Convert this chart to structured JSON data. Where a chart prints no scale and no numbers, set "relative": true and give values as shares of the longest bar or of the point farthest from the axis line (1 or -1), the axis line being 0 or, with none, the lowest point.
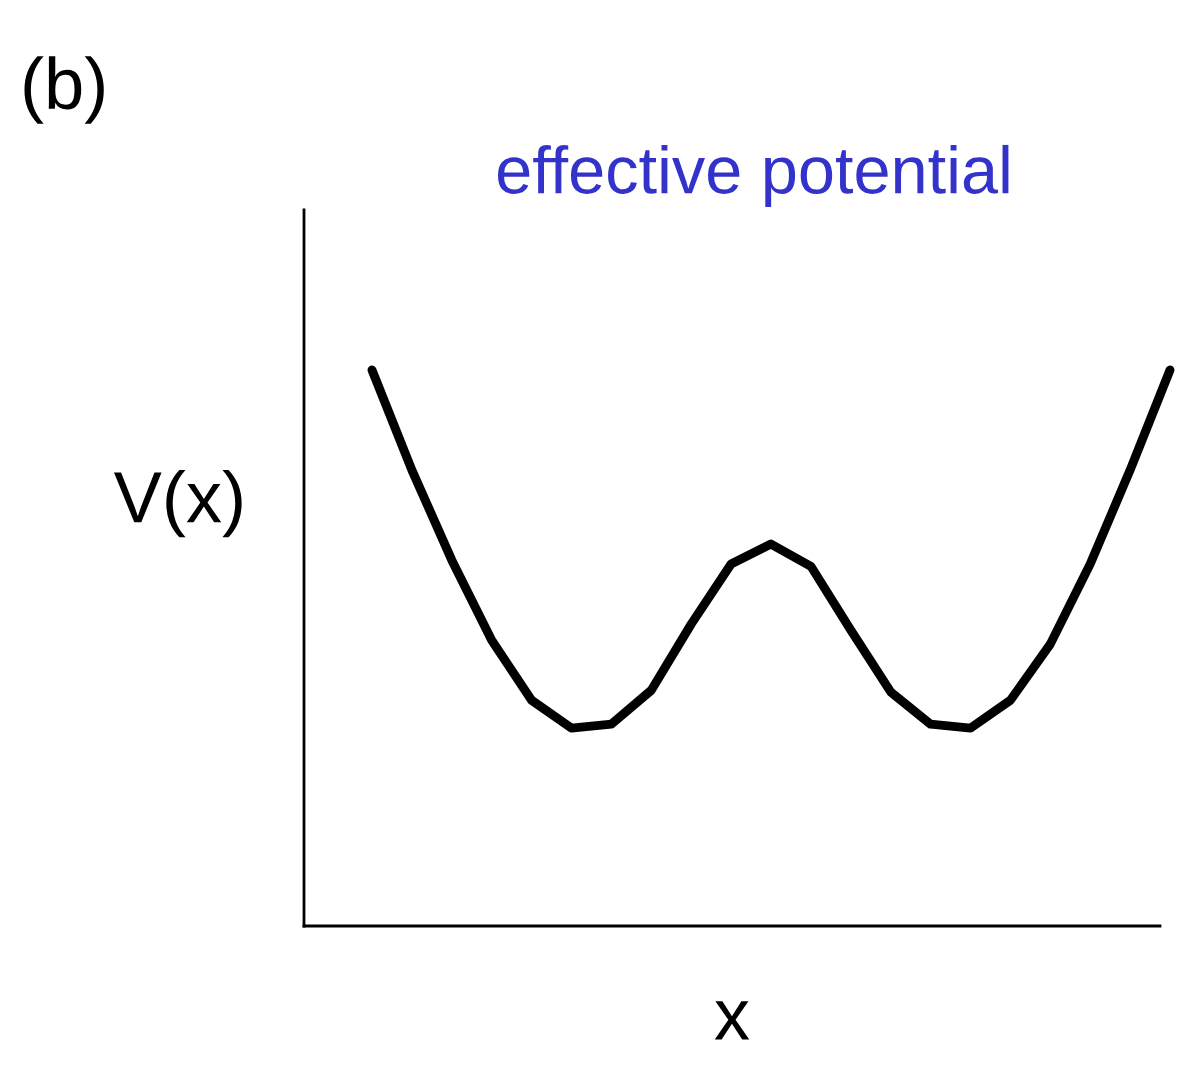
{
  "chart_data": {
    "type": "line",
    "title": "effective potential",
    "xlabel": "x",
    "ylabel": "V(x)",
    "annotations": [
      "(b)"
    ],
    "relative": true,
    "categories": [
      null,
      null,
      null,
      null,
      null,
      null,
      null,
      null,
      null,
      null,
      null,
      null,
      null,
      null,
      null,
      null,
      null,
      null,
      null,
      null,
      null
    ],
    "series": [
      {
        "color": "#000000",
        "values": [
          1.0,
          0.82,
          0.658,
          0.514,
          0.406,
          0.356,
          0.363,
          0.424,
          0.543,
          0.651,
          0.687,
          0.647,
          0.532,
          0.421,
          0.363,
          0.356,
          0.406,
          0.507,
          0.651,
          0.82,
          1.0
        ]
      }
    ],
    "marker": "none",
    "line_style": "solid"
  }
}
